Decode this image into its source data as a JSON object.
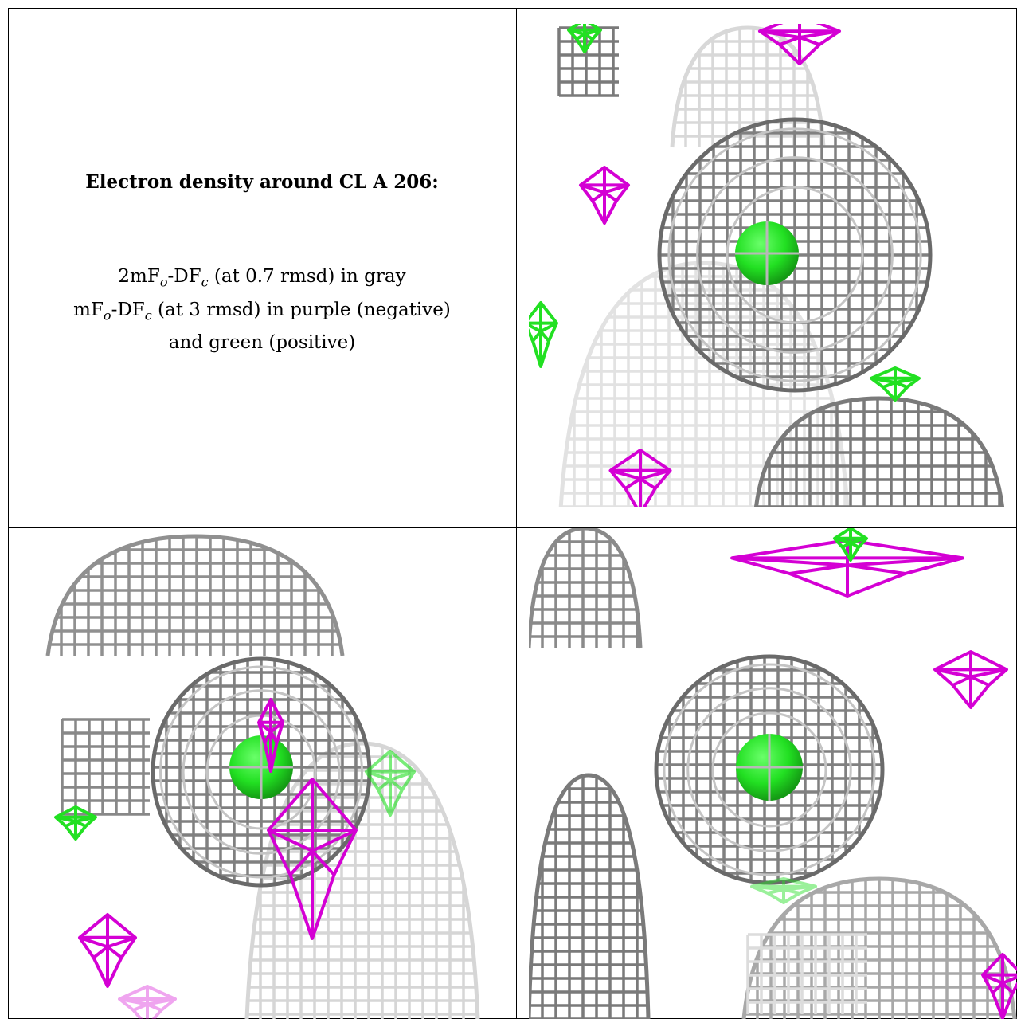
{
  "caption": {
    "title": "Electron density around CL A 206:",
    "line1": {
      "pre": "2mF",
      "sub1": "o",
      "mid": "-DF",
      "sub2": "c",
      "post": " (at 0.7 rmsd) in gray"
    },
    "line2": {
      "pre": "mF",
      "sub1": "o",
      "mid": "-DF",
      "sub2": "c",
      "post": " (at 3 rmsd) in purple (negative)"
    },
    "line3": "and green (positive)"
  },
  "legend_colors": {
    "map_2fofc": "#8a8a8a",
    "negative": "#d400d4",
    "positive": "#22e022"
  },
  "views": [
    {
      "name": "view-top-right"
    },
    {
      "name": "view-bottom-left"
    },
    {
      "name": "view-bottom-right"
    }
  ]
}
